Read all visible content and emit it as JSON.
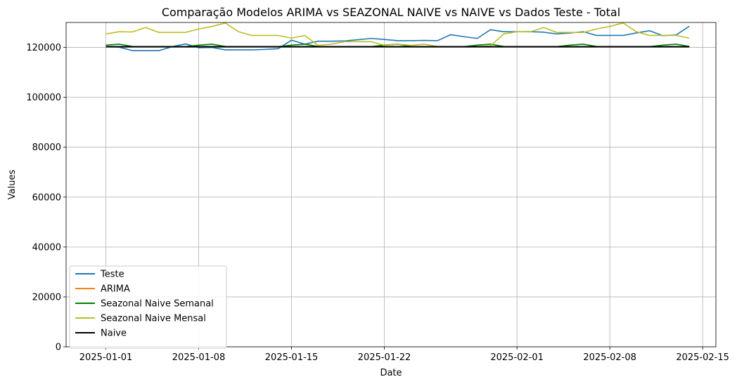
{
  "chart_data": {
    "type": "line",
    "title": "Comparação Modelos ARIMA vs SEAZONAL NAIVE vs NAIVE vs Dados Teste - Total",
    "xlabel": "Date",
    "ylabel": "Values",
    "xlim": [
      "2024-12-29",
      "2025-02-16"
    ],
    "ylim": [
      0,
      130000
    ],
    "grid": true,
    "legend_position": "lower-left",
    "x_ticks": [
      "2025-01-01",
      "2025-01-08",
      "2025-01-15",
      "2025-01-22",
      "2025-02-01",
      "2025-02-08",
      "2025-02-15"
    ],
    "y_ticks": [
      0,
      20000,
      40000,
      60000,
      80000,
      100000,
      120000
    ],
    "series": [
      {
        "name": "Teste",
        "color": "#1f77b4",
        "points": [
          [
            "2025-01-01",
            120300
          ],
          [
            "2025-01-02",
            120100
          ],
          [
            "2025-01-03",
            118700
          ],
          [
            "2025-01-04",
            118700
          ],
          [
            "2025-01-05",
            118700
          ],
          [
            "2025-01-06",
            120300
          ],
          [
            "2025-01-07",
            121400
          ],
          [
            "2025-01-08",
            119900
          ],
          [
            "2025-01-09",
            120000
          ],
          [
            "2025-01-10",
            119000
          ],
          [
            "2025-01-11",
            119000
          ],
          [
            "2025-01-12",
            119000
          ],
          [
            "2025-01-13",
            119200
          ],
          [
            "2025-01-14",
            119500
          ],
          [
            "2025-01-15",
            122900
          ],
          [
            "2025-01-16",
            121300
          ],
          [
            "2025-01-17",
            122500
          ],
          [
            "2025-01-18",
            122500
          ],
          [
            "2025-01-19",
            122600
          ],
          [
            "2025-01-20",
            123100
          ],
          [
            "2025-01-21",
            123600
          ],
          [
            "2025-01-22",
            123200
          ],
          [
            "2025-01-23",
            122700
          ],
          [
            "2025-01-24",
            122700
          ],
          [
            "2025-01-25",
            122800
          ],
          [
            "2025-01-26",
            122700
          ],
          [
            "2025-01-27",
            125100
          ],
          [
            "2025-01-28",
            124300
          ],
          [
            "2025-01-29",
            123600
          ],
          [
            "2025-01-30",
            127100
          ],
          [
            "2025-01-31",
            126300
          ],
          [
            "2025-02-01",
            126300
          ],
          [
            "2025-02-02",
            126300
          ],
          [
            "2025-02-03",
            126100
          ],
          [
            "2025-02-04",
            125400
          ],
          [
            "2025-02-05",
            125800
          ],
          [
            "2025-02-06",
            126300
          ],
          [
            "2025-02-07",
            124800
          ],
          [
            "2025-02-08",
            124800
          ],
          [
            "2025-02-09",
            124800
          ],
          [
            "2025-02-10",
            125800
          ],
          [
            "2025-02-11",
            126700
          ],
          [
            "2025-02-12",
            124700
          ],
          [
            "2025-02-13",
            125000
          ],
          [
            "2025-02-14",
            128500
          ]
        ]
      },
      {
        "name": "ARIMA",
        "color": "#ff7f0e",
        "points": [
          [
            "2025-01-01",
            120300
          ],
          [
            "2025-02-14",
            120300
          ]
        ]
      },
      {
        "name": "Seazonal Naive Semanal",
        "color": "#008000",
        "points": [
          [
            "2025-01-01",
            120900
          ],
          [
            "2025-01-02",
            121300
          ],
          [
            "2025-01-03",
            120400
          ],
          [
            "2025-01-04",
            120300
          ],
          [
            "2025-01-05",
            120300
          ],
          [
            "2025-01-06",
            120300
          ],
          [
            "2025-01-07",
            120300
          ],
          [
            "2025-01-08",
            120900
          ],
          [
            "2025-01-09",
            121300
          ],
          [
            "2025-01-10",
            120400
          ],
          [
            "2025-01-11",
            120300
          ],
          [
            "2025-01-12",
            120300
          ],
          [
            "2025-01-13",
            120300
          ],
          [
            "2025-01-14",
            120300
          ],
          [
            "2025-01-15",
            120900
          ],
          [
            "2025-01-16",
            121300
          ],
          [
            "2025-01-17",
            120400
          ],
          [
            "2025-01-18",
            120300
          ],
          [
            "2025-01-19",
            120300
          ],
          [
            "2025-01-20",
            120300
          ],
          [
            "2025-01-21",
            120300
          ],
          [
            "2025-01-22",
            120900
          ],
          [
            "2025-01-23",
            121300
          ],
          [
            "2025-01-24",
            120400
          ],
          [
            "2025-01-25",
            120300
          ],
          [
            "2025-01-26",
            120300
          ],
          [
            "2025-01-27",
            120300
          ],
          [
            "2025-01-28",
            120300
          ],
          [
            "2025-01-29",
            120900
          ],
          [
            "2025-01-30",
            121300
          ],
          [
            "2025-01-31",
            120400
          ],
          [
            "2025-02-01",
            120300
          ],
          [
            "2025-02-02",
            120300
          ],
          [
            "2025-02-03",
            120300
          ],
          [
            "2025-02-04",
            120300
          ],
          [
            "2025-02-05",
            120900
          ],
          [
            "2025-02-06",
            121300
          ],
          [
            "2025-02-07",
            120400
          ],
          [
            "2025-02-08",
            120300
          ],
          [
            "2025-02-09",
            120300
          ],
          [
            "2025-02-10",
            120300
          ],
          [
            "2025-02-11",
            120300
          ],
          [
            "2025-02-12",
            120900
          ],
          [
            "2025-02-13",
            121300
          ],
          [
            "2025-02-14",
            120400
          ]
        ]
      },
      {
        "name": "Seazonal Naive Mensal",
        "color": "#bcbd22",
        "points": [
          [
            "2025-01-01",
            125400
          ],
          [
            "2025-01-02",
            126300
          ],
          [
            "2025-01-03",
            126200
          ],
          [
            "2025-01-04",
            128000
          ],
          [
            "2025-01-05",
            126000
          ],
          [
            "2025-01-06",
            126000
          ],
          [
            "2025-01-07",
            126000
          ],
          [
            "2025-01-08",
            127400
          ],
          [
            "2025-01-09",
            128400
          ],
          [
            "2025-01-10",
            129800
          ],
          [
            "2025-01-11",
            126300
          ],
          [
            "2025-01-12",
            124800
          ],
          [
            "2025-01-13",
            124800
          ],
          [
            "2025-01-14",
            124800
          ],
          [
            "2025-01-15",
            123700
          ],
          [
            "2025-01-16",
            124800
          ],
          [
            "2025-01-17",
            120800
          ],
          [
            "2025-01-18",
            121300
          ],
          [
            "2025-01-19",
            122300
          ],
          [
            "2025-01-20",
            122300
          ],
          [
            "2025-01-21",
            122300
          ],
          [
            "2025-01-22",
            120800
          ],
          [
            "2025-01-23",
            121300
          ],
          [
            "2025-01-24",
            120800
          ],
          [
            "2025-01-25",
            121300
          ],
          [
            "2025-01-26",
            120400
          ],
          [
            "2025-01-27",
            120300
          ],
          [
            "2025-01-28",
            120300
          ],
          [
            "2025-01-29",
            120300
          ],
          [
            "2025-01-30",
            120600
          ],
          [
            "2025-01-31",
            125400
          ],
          [
            "2025-02-01",
            126300
          ],
          [
            "2025-02-02",
            126200
          ],
          [
            "2025-02-03",
            128000
          ],
          [
            "2025-02-04",
            126000
          ],
          [
            "2025-02-05",
            126000
          ],
          [
            "2025-02-06",
            126000
          ],
          [
            "2025-02-07",
            127400
          ],
          [
            "2025-02-08",
            128400
          ],
          [
            "2025-02-09",
            129800
          ],
          [
            "2025-02-10",
            126300
          ],
          [
            "2025-02-11",
            124800
          ],
          [
            "2025-02-12",
            124800
          ],
          [
            "2025-02-13",
            124800
          ],
          [
            "2025-02-14",
            123700
          ]
        ]
      },
      {
        "name": "Naive",
        "color": "#000000",
        "points": [
          [
            "2025-01-01",
            120300
          ],
          [
            "2025-02-14",
            120300
          ]
        ]
      }
    ]
  }
}
